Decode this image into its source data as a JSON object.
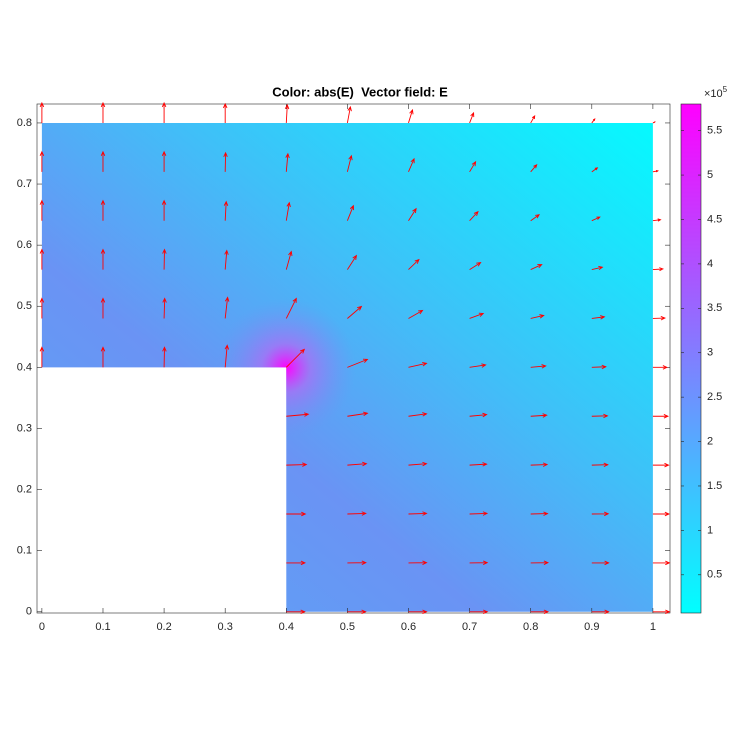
{
  "chart_data": {
    "type": "quiver",
    "title": "Color: abs(E)  Vector field: E",
    "xlim": [
      -0.008,
      1.028
    ],
    "ylim": [
      -0.002,
      0.831
    ],
    "xticks": [
      0,
      0.1,
      0.2,
      0.3,
      0.4,
      0.5,
      0.6,
      0.7,
      0.8,
      0.9,
      1
    ],
    "yticks": [
      0,
      0.1,
      0.2,
      0.3,
      0.4,
      0.5,
      0.6,
      0.7,
      0.8
    ],
    "domain": {
      "x": [
        0,
        0.4,
        0.4,
        1,
        1,
        0
      ],
      "y": [
        0.4,
        0.4,
        0,
        0,
        0.8,
        0.8
      ]
    },
    "arrow_color": "#ff0000",
    "x": [
      0,
      0.1,
      0.2,
      0.3,
      0.4,
      0.5,
      0.6,
      0.7,
      0.8,
      0.9,
      1,
      0,
      0.1,
      0.2,
      0.3,
      0.4,
      0.5,
      0.6,
      0.7,
      0.8,
      0.9,
      1,
      0,
      0.1,
      0.2,
      0.3,
      0.4,
      0.5,
      0.6,
      0.7,
      0.8,
      0.9,
      1,
      0,
      0.1,
      0.2,
      0.3,
      0.4,
      0.5,
      0.6,
      0.7,
      0.8,
      0.9,
      1,
      0,
      0.1,
      0.2,
      0.3,
      0.4,
      0.5,
      0.6,
      0.7,
      0.8,
      0.9,
      1,
      0,
      0.1,
      0.2,
      0.3,
      0.4,
      0.5,
      0.6,
      0.7,
      0.8,
      0.9,
      1,
      0.4,
      0.5,
      0.6,
      0.7,
      0.8,
      0.9,
      1,
      0.4,
      0.5,
      0.6,
      0.7,
      0.8,
      0.9,
      1,
      0.4,
      0.5,
      0.6,
      0.7,
      0.8,
      0.9,
      1,
      0.4,
      0.5,
      0.6,
      0.7,
      0.8,
      0.9,
      1,
      0.4,
      0.5,
      0.6,
      0.7,
      0.8,
      0.9,
      1
    ],
    "y": [
      0.8,
      0.8,
      0.8,
      0.8,
      0.8,
      0.8,
      0.8,
      0.8,
      0.8,
      0.8,
      0.8,
      0.72,
      0.72,
      0.72,
      0.72,
      0.72,
      0.72,
      0.72,
      0.72,
      0.72,
      0.72,
      0.72,
      0.64,
      0.64,
      0.64,
      0.64,
      0.64,
      0.64,
      0.64,
      0.64,
      0.64,
      0.64,
      0.64,
      0.56,
      0.56,
      0.56,
      0.56,
      0.56,
      0.56,
      0.56,
      0.56,
      0.56,
      0.56,
      0.56,
      0.48,
      0.48,
      0.48,
      0.48,
      0.48,
      0.48,
      0.48,
      0.48,
      0.48,
      0.48,
      0.48,
      0.4,
      0.4,
      0.4,
      0.4,
      0.4,
      0.4,
      0.4,
      0.4,
      0.4,
      0.4,
      0.4,
      0.32,
      0.32,
      0.32,
      0.32,
      0.32,
      0.32,
      0.32,
      0.24,
      0.24,
      0.24,
      0.24,
      0.24,
      0.24,
      0.24,
      0.16,
      0.16,
      0.16,
      0.16,
      0.16,
      0.16,
      0.16,
      0.08,
      0.08,
      0.08,
      0.08,
      0.08,
      0.08,
      0.08,
      0,
      0,
      0,
      0,
      0,
      0,
      0
    ],
    "u": [
      0,
      0,
      0,
      0,
      0.05,
      0.15,
      0.2,
      0.2,
      0.2,
      0.15,
      0.1,
      0,
      0,
      0,
      0.02,
      0.08,
      0.2,
      0.28,
      0.3,
      0.3,
      0.28,
      0.25,
      0,
      0,
      0,
      0.05,
      0.15,
      0.3,
      0.38,
      0.42,
      0.42,
      0.4,
      0.38,
      0,
      0,
      0.02,
      0.08,
      0.25,
      0.45,
      0.52,
      0.55,
      0.55,
      0.53,
      0.5,
      0,
      0,
      0.03,
      0.12,
      0.5,
      0.7,
      0.7,
      0.68,
      0.65,
      0.63,
      0.6,
      0,
      0,
      0.02,
      0.1,
      0.9,
      1.0,
      0.9,
      0.8,
      0.75,
      0.7,
      0.7,
      1.1,
      1.0,
      0.9,
      0.85,
      0.8,
      0.78,
      0.75,
      1.0,
      0.95,
      0.9,
      0.85,
      0.82,
      0.8,
      0.78,
      0.95,
      0.92,
      0.9,
      0.87,
      0.84,
      0.82,
      0.8,
      0.93,
      0.92,
      0.9,
      0.88,
      0.86,
      0.84,
      0.82,
      0.92,
      0.91,
      0.9,
      0.88,
      0.86,
      0.84,
      0.82
    ],
    "v": [
      1,
      1,
      1,
      0.95,
      0.9,
      0.8,
      0.65,
      0.5,
      0.35,
      0.2,
      0.05,
      1,
      1,
      1,
      0.95,
      0.9,
      0.8,
      0.65,
      0.5,
      0.35,
      0.2,
      0.05,
      1,
      1,
      1,
      0.95,
      0.9,
      0.75,
      0.6,
      0.45,
      0.3,
      0.18,
      0.05,
      1,
      1,
      1,
      0.95,
      0.9,
      0.7,
      0.5,
      0.35,
      0.25,
      0.12,
      0.03,
      1,
      1,
      1,
      1.05,
      1.0,
      0.6,
      0.4,
      0.25,
      0.15,
      0.08,
      0.02,
      1,
      1,
      1,
      1.1,
      0.9,
      0.4,
      0.2,
      0.12,
      0.07,
      0.03,
      0,
      0.1,
      0.15,
      0.12,
      0.08,
      0.05,
      0.02,
      0,
      0.03,
      0.07,
      0.07,
      0.05,
      0.03,
      0.02,
      0,
      0,
      0.03,
      0.03,
      0.03,
      0.02,
      0.01,
      0,
      0,
      0.01,
      0.01,
      0.01,
      0.01,
      0,
      0,
      0,
      0,
      0,
      0,
      0,
      0,
      0
    ],
    "colorbar": {
      "lim": [
        0.07,
        5.8
      ],
      "ticks": [
        0.5,
        1,
        1.5,
        2,
        2.5,
        3,
        3.5,
        4,
        4.5,
        5,
        5.5
      ],
      "colors": [
        "#00ffff",
        "#ff00ff"
      ],
      "multiplier": "×10",
      "exponent": "5"
    }
  }
}
